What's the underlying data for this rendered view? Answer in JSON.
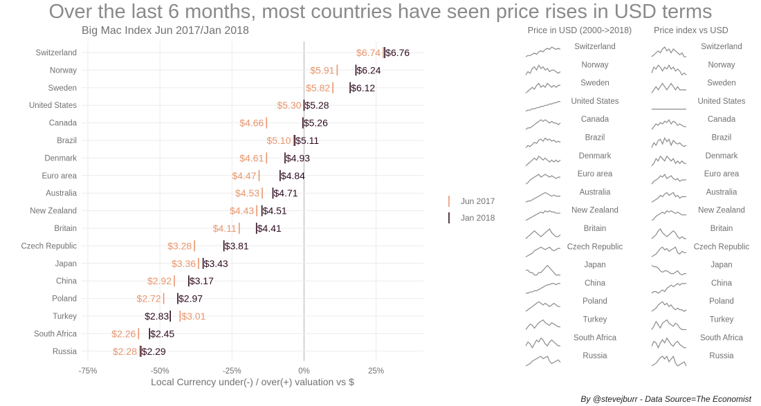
{
  "title": "Over the last 6 months, most countries have seen price rises in USD terms",
  "subtitle": "Big Mac Index Jun 2017/Jan 2018",
  "footer": "By @stevejburr - Data Source=The Economist",
  "colors": {
    "jun2017": "#e8956d",
    "jan2018": "#2d0a1e",
    "grid": "#ebebeb",
    "zero": "#bdbdbd",
    "spark": "#8a8a8a",
    "muted": "#707070"
  },
  "chart_data": [
    {
      "type": "scatter",
      "xlabel": "Local Currency under(-) / over(+) valuation vs $",
      "xlim": [
        -75,
        45
      ],
      "xticks": [
        "-75%",
        "-50%",
        "-25%",
        "0%",
        "25%"
      ],
      "xtick_values": [
        -75,
        -50,
        -25,
        0,
        25
      ],
      "legend": {
        "placement": "right",
        "entries": [
          {
            "name": "Jun 2017",
            "color_key": "jun2017"
          },
          {
            "name": "Jan 2018",
            "color_key": "jan2018"
          }
        ]
      },
      "categories": [
        "Switzerland",
        "Norway",
        "Sweden",
        "United States",
        "Canada",
        "Brazil",
        "Denmark",
        "Euro area",
        "Australia",
        "New Zealand",
        "Britain",
        "Czech Republic",
        "Japan",
        "China",
        "Poland",
        "Turkey",
        "South Africa",
        "Russia"
      ],
      "series": [
        {
          "name": "Jun 2017",
          "valuation": [
            27.5,
            11.5,
            10,
            0,
            -13,
            -3.6,
            -13,
            -15.6,
            -14.5,
            -16.4,
            -22.5,
            -38,
            -36.6,
            -45,
            -48.7,
            -43,
            -57.4,
            -57
          ],
          "labels": [
            "$6.74",
            "$5.91",
            "$5.82",
            "$5.30",
            "$4.66",
            "$5.10",
            "$4.61",
            "$4.47",
            "$4.53",
            "$4.43",
            "$4.11",
            "$3.28",
            "$3.36",
            "$2.92",
            "$2.72",
            "$3.01",
            "$2.26",
            "$2.28"
          ]
        },
        {
          "name": "Jan 2018",
          "valuation": [
            28,
            18,
            16,
            0,
            -0.4,
            -3.2,
            -6.6,
            -8.3,
            -10.8,
            -14.6,
            -16.5,
            -27.8,
            -35,
            -40,
            -43.8,
            -46.4,
            -53.6,
            -56.6
          ],
          "labels": [
            "$6.76",
            "$6.24",
            "$6.12",
            "$5.28",
            "$5.26",
            "$5.11",
            "$4.93",
            "$4.84",
            "$4.71",
            "$4.51",
            "$4.41",
            "$3.81",
            "$3.43",
            "$3.17",
            "$2.97",
            "$2.83",
            "$2.45",
            "$2.29"
          ]
        }
      ]
    },
    {
      "type": "line",
      "title": "Price in USD (2000->2018)",
      "sparklines": [
        [
          2,
          3,
          3,
          4,
          5,
          4,
          6,
          7,
          6,
          8,
          9,
          8,
          10,
          9,
          8,
          9,
          8
        ],
        [
          4,
          6,
          5,
          8,
          9,
          7,
          10,
          8,
          9,
          7,
          8,
          6,
          7,
          7,
          6,
          5,
          6
        ],
        [
          3,
          4,
          5,
          6,
          5,
          7,
          8,
          6,
          7,
          6,
          8,
          7,
          6,
          7,
          6,
          7,
          7
        ],
        [
          1,
          2,
          2,
          3,
          3,
          4,
          4,
          5,
          5,
          6,
          6,
          7,
          7,
          8,
          8,
          9,
          9
        ],
        [
          2,
          3,
          3,
          4,
          5,
          6,
          7,
          8,
          7,
          8,
          7,
          6,
          7,
          6,
          6,
          5,
          6
        ],
        [
          1,
          3,
          2,
          4,
          6,
          5,
          8,
          9,
          7,
          10,
          8,
          9,
          7,
          8,
          6,
          7,
          6
        ],
        [
          3,
          4,
          5,
          6,
          7,
          6,
          8,
          7,
          6,
          7,
          6,
          5,
          6,
          5,
          6,
          5,
          6
        ],
        [
          2,
          3,
          5,
          6,
          7,
          8,
          9,
          7,
          8,
          9,
          8,
          7,
          8,
          7,
          6,
          7,
          7
        ],
        [
          1,
          2,
          2,
          3,
          4,
          5,
          6,
          7,
          8,
          9,
          8,
          7,
          6,
          7,
          6,
          6,
          6
        ],
        [
          1,
          2,
          3,
          4,
          5,
          6,
          7,
          8,
          7,
          9,
          8,
          9,
          8,
          8,
          7,
          7,
          7
        ],
        [
          3,
          4,
          5,
          6,
          7,
          6,
          5,
          4,
          5,
          6,
          7,
          8,
          6,
          5,
          4,
          4,
          5
        ],
        [
          1,
          2,
          3,
          4,
          6,
          7,
          8,
          9,
          8,
          7,
          8,
          9,
          7,
          6,
          7,
          8,
          8
        ],
        [
          6,
          6,
          5,
          5,
          4,
          4,
          5,
          5,
          6,
          7,
          8,
          7,
          6,
          5,
          4,
          4,
          4
        ],
        [
          1,
          1,
          2,
          2,
          3,
          3,
          4,
          5,
          6,
          7,
          8,
          8,
          9,
          9,
          8,
          9,
          9
        ],
        [
          2,
          3,
          4,
          5,
          6,
          7,
          8,
          7,
          6,
          7,
          6,
          5,
          6,
          7,
          6,
          5,
          5
        ],
        [
          2,
          4,
          6,
          5,
          3,
          5,
          7,
          8,
          9,
          7,
          6,
          5,
          7,
          6,
          5,
          4,
          4
        ],
        [
          4,
          6,
          5,
          3,
          5,
          7,
          6,
          8,
          7,
          5,
          4,
          6,
          7,
          6,
          5,
          4,
          4
        ],
        [
          1,
          2,
          3,
          5,
          6,
          7,
          8,
          9,
          7,
          8,
          9,
          5,
          3,
          4,
          5,
          6,
          4
        ]
      ]
    },
    {
      "type": "line",
      "title": "Price index vs USD",
      "sparklines": [
        [
          5,
          6,
          7,
          8,
          7,
          9,
          10,
          8,
          9,
          7,
          9,
          8,
          7,
          6,
          7,
          5,
          5
        ],
        [
          6,
          9,
          8,
          10,
          9,
          7,
          9,
          8,
          10,
          8,
          9,
          7,
          8,
          7,
          5,
          6,
          5
        ],
        [
          5,
          6,
          7,
          6,
          7,
          8,
          7,
          6,
          7,
          8,
          7,
          6,
          7,
          6,
          6,
          6,
          6
        ],
        [
          5,
          5,
          5,
          5,
          5,
          5,
          5,
          5,
          5,
          5,
          5,
          5,
          5,
          5,
          5,
          5,
          5
        ],
        [
          3,
          5,
          7,
          6,
          8,
          7,
          9,
          8,
          10,
          7,
          9,
          8,
          6,
          7,
          6,
          5,
          5
        ],
        [
          2,
          6,
          4,
          8,
          9,
          5,
          10,
          7,
          9,
          4,
          8,
          6,
          5,
          6,
          4,
          3,
          4
        ],
        [
          4,
          5,
          7,
          6,
          8,
          7,
          6,
          8,
          7,
          6,
          7,
          5,
          6,
          5,
          6,
          5,
          5
        ],
        [
          3,
          5,
          6,
          7,
          9,
          8,
          10,
          7,
          8,
          9,
          7,
          6,
          7,
          5,
          6,
          6,
          6
        ],
        [
          2,
          3,
          4,
          5,
          7,
          6,
          8,
          9,
          7,
          8,
          9,
          6,
          7,
          5,
          6,
          6,
          6
        ],
        [
          2,
          3,
          5,
          6,
          7,
          8,
          7,
          9,
          8,
          9,
          8,
          7,
          8,
          7,
          6,
          6,
          6
        ],
        [
          4,
          5,
          6,
          8,
          9,
          7,
          6,
          5,
          6,
          7,
          8,
          7,
          5,
          4,
          5,
          4,
          4
        ],
        [
          2,
          3,
          4,
          6,
          8,
          9,
          7,
          8,
          6,
          7,
          8,
          9,
          5,
          4,
          6,
          5,
          5
        ],
        [
          9,
          8,
          8,
          7,
          5,
          4,
          5,
          5,
          4,
          3,
          3,
          4,
          5,
          3,
          2,
          3,
          3
        ],
        [
          2,
          3,
          3,
          2,
          3,
          4,
          3,
          5,
          6,
          7,
          6,
          7,
          8,
          7,
          8,
          8,
          8
        ],
        [
          3,
          4,
          5,
          7,
          8,
          9,
          7,
          8,
          6,
          7,
          5,
          4,
          5,
          4,
          4,
          3,
          4
        ],
        [
          3,
          5,
          8,
          6,
          4,
          7,
          8,
          9,
          7,
          6,
          5,
          7,
          6,
          4,
          3,
          3,
          3
        ],
        [
          3,
          6,
          5,
          2,
          5,
          7,
          5,
          8,
          6,
          4,
          3,
          5,
          6,
          4,
          3,
          2,
          2
        ],
        [
          2,
          3,
          4,
          6,
          8,
          9,
          7,
          9,
          5,
          7,
          9,
          4,
          2,
          3,
          4,
          5,
          2
        ]
      ]
    }
  ]
}
